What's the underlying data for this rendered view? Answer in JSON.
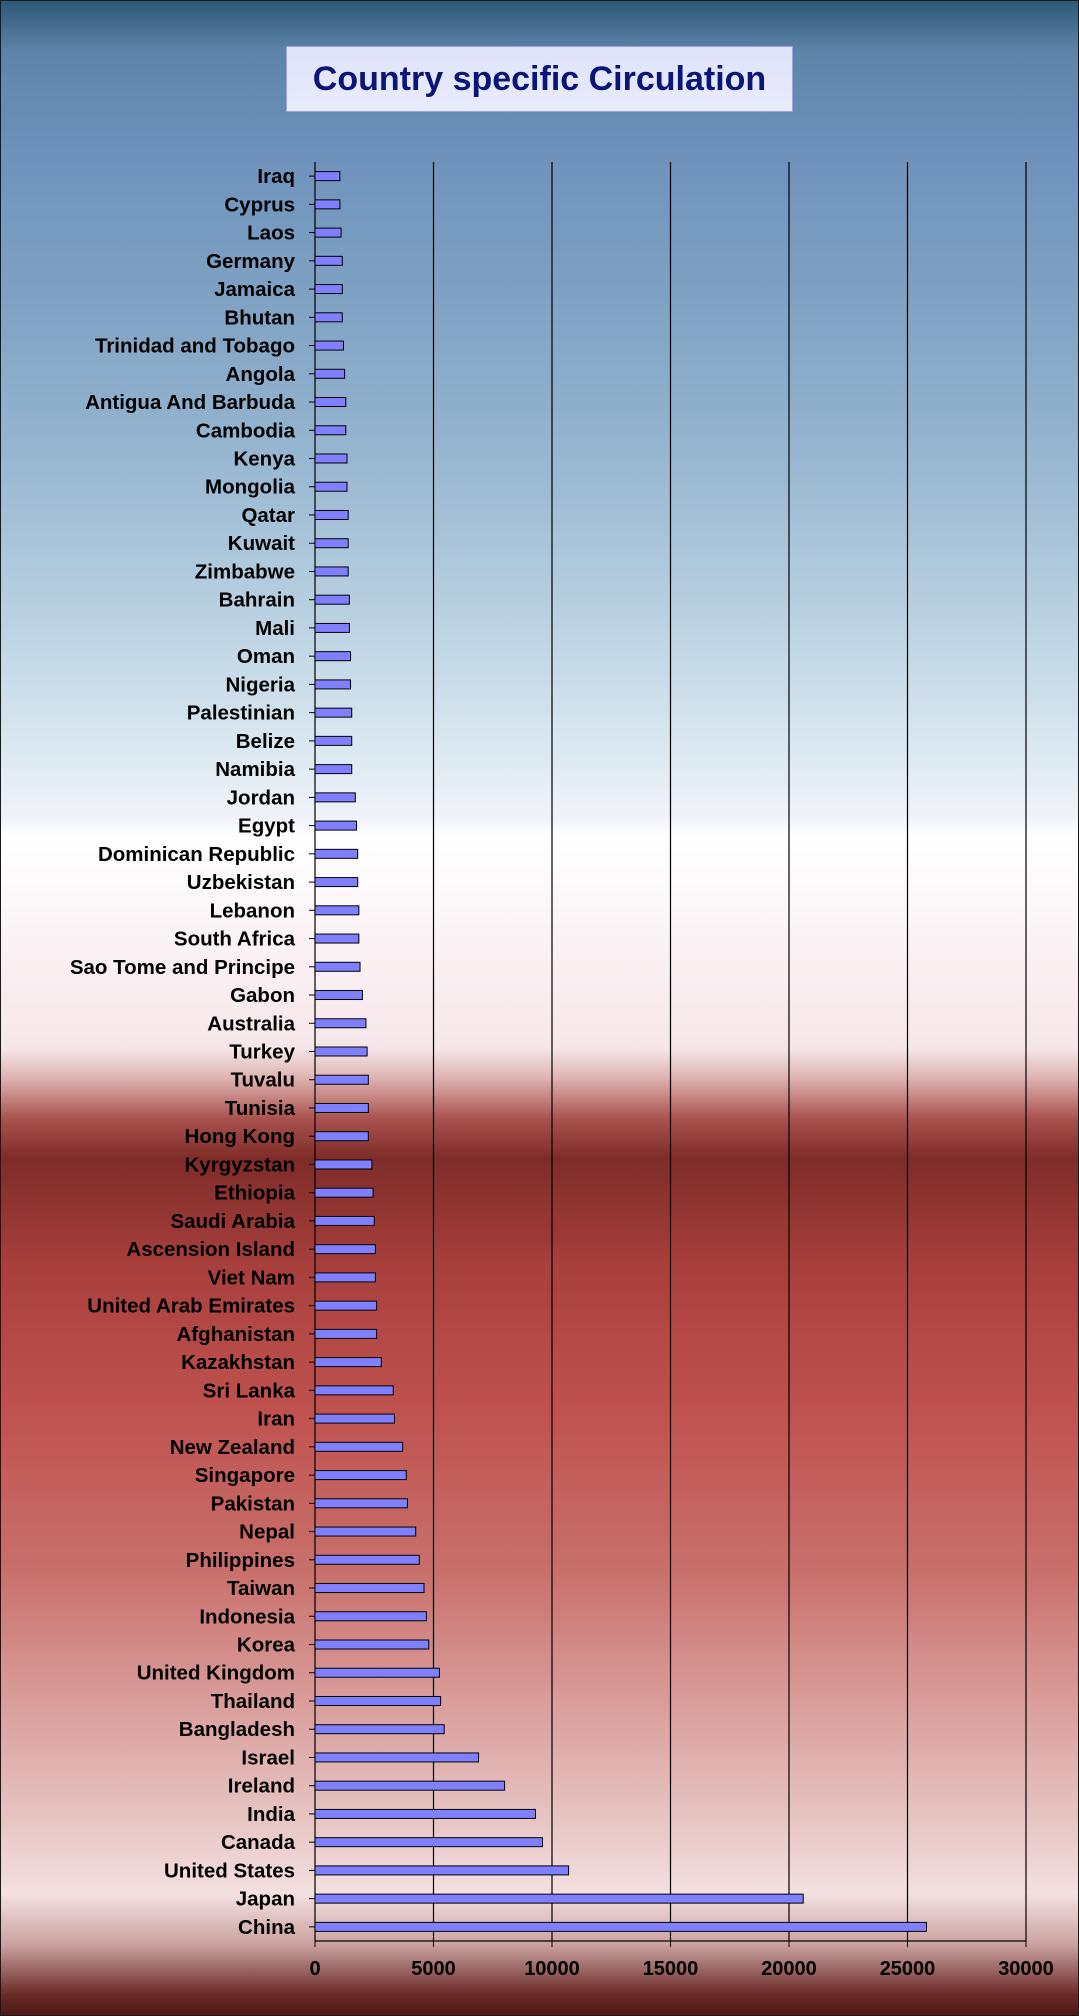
{
  "chart_data": {
    "type": "bar",
    "orientation": "horizontal",
    "title": "Country specific Circulation",
    "xlabel": "",
    "ylabel": "",
    "xlim": [
      0,
      30000
    ],
    "x_ticks": [
      0,
      5000,
      10000,
      15000,
      20000,
      25000,
      30000
    ],
    "grid": "vertical",
    "legend": "none",
    "bar_color": "#8080ff",
    "categories": [
      "Iraq",
      "Cyprus",
      "Laos",
      "Germany",
      "Jamaica",
      "Bhutan",
      "Trinidad and Tobago",
      "Angola",
      "Antigua And Barbuda",
      "Cambodia",
      "Kenya",
      "Mongolia",
      "Qatar",
      "Kuwait",
      "Zimbabwe",
      "Bahrain",
      "Mali",
      "Oman",
      "Nigeria",
      "Palestinian",
      "Belize",
      "Namibia",
      "Jordan",
      "Egypt",
      "Dominican Republic",
      "Uzbekistan",
      "Lebanon",
      "South Africa",
      "Sao Tome and Principe",
      "Gabon",
      "Australia",
      "Turkey",
      "Tuvalu",
      "Tunisia",
      "Hong Kong",
      "Kyrgyzstan",
      "Ethiopia",
      "Saudi Arabia",
      "Ascension Island",
      "Viet Nam",
      "United Arab Emirates",
      "Afghanistan",
      "Kazakhstan",
      "Sri Lanka",
      "Iran",
      "New Zealand",
      "Singapore",
      "Pakistan",
      "Nepal",
      "Philippines",
      "Taiwan",
      "Indonesia",
      "Korea",
      "United Kingdom",
      "Thailand",
      "Bangladesh",
      "Israel",
      "Ireland",
      "India",
      "Canada",
      "United States",
      "Japan",
      "China"
    ],
    "values": [
      1050,
      1050,
      1100,
      1150,
      1150,
      1150,
      1200,
      1250,
      1300,
      1300,
      1350,
      1350,
      1400,
      1400,
      1400,
      1450,
      1450,
      1500,
      1500,
      1550,
      1550,
      1550,
      1700,
      1750,
      1800,
      1800,
      1850,
      1850,
      1900,
      2000,
      2150,
      2200,
      2250,
      2250,
      2250,
      2400,
      2450,
      2500,
      2550,
      2550,
      2600,
      2600,
      2800,
      3300,
      3350,
      3700,
      3850,
      3900,
      4250,
      4400,
      4600,
      4700,
      4800,
      5250,
      5300,
      5450,
      6900,
      8000,
      9300,
      9600,
      10700,
      20600,
      25800
    ]
  }
}
